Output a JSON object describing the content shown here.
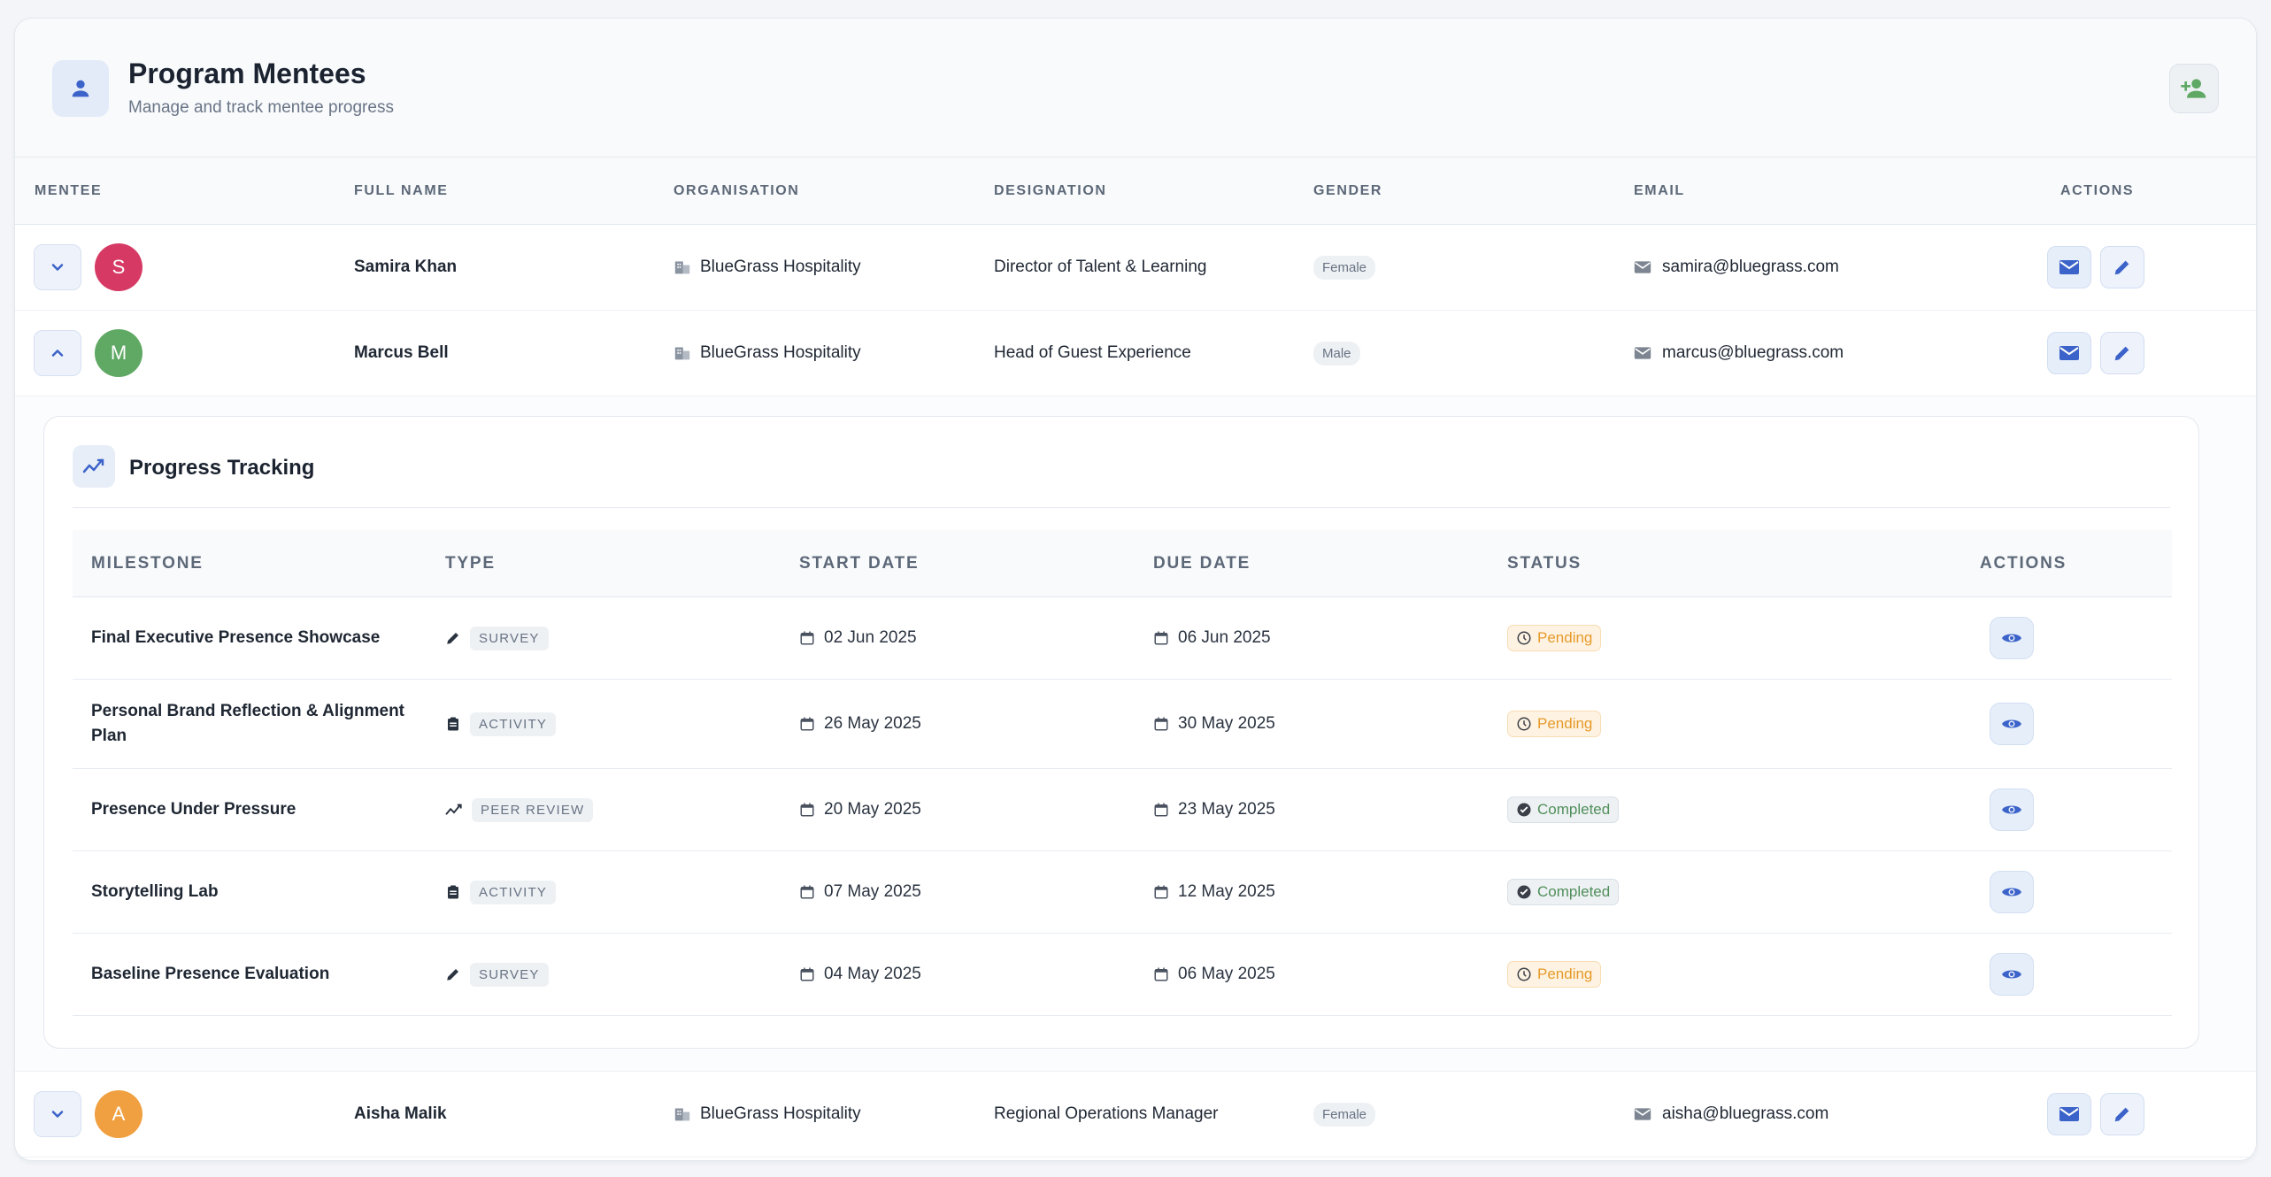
{
  "header": {
    "title": "Program Mentees",
    "subtitle": "Manage and track mentee progress",
    "icon": "person-icon",
    "add_icon": "person-add-icon"
  },
  "columns": {
    "mentee": "MENTEE",
    "full_name": "FULL NAME",
    "organisation": "ORGANISATION",
    "designation": "DESIGNATION",
    "gender": "GENDER",
    "email": "EMAIL",
    "actions": "ACTIONS"
  },
  "mentees": [
    {
      "initial": "S",
      "avatar_color": "#d63a64",
      "name": "Samira Khan",
      "organisation": "BlueGrass Hospitality",
      "designation": "Director of Talent & Learning",
      "gender": "Female",
      "email": "samira@bluegrass.com",
      "expanded": false
    },
    {
      "initial": "M",
      "avatar_color": "#5fa964",
      "name": "Marcus Bell",
      "organisation": "BlueGrass Hospitality",
      "designation": "Head of Guest Experience",
      "gender": "Male",
      "email": "marcus@bluegrass.com",
      "expanded": true
    },
    {
      "initial": "A",
      "avatar_color": "#f0a040",
      "name": "Aisha Malik",
      "organisation": "BlueGrass Hospitality",
      "designation": "Regional Operations Manager",
      "gender": "Female",
      "email": "aisha@bluegrass.com",
      "expanded": false
    }
  ],
  "progress": {
    "title": "Progress Tracking",
    "columns": {
      "milestone": "MILESTONE",
      "type": "TYPE",
      "start_date": "START DATE",
      "due_date": "DUE DATE",
      "status": "STATUS",
      "actions": "ACTIONS"
    },
    "milestones": [
      {
        "name": "Final Executive Presence Showcase",
        "type": "SURVEY",
        "type_icon": "pencil-icon",
        "start": "02 Jun 2025",
        "due": "06 Jun 2025",
        "status": "Pending"
      },
      {
        "name": "Personal Brand Reflection & Alignment Plan",
        "type": "ACTIVITY",
        "type_icon": "clipboard-icon",
        "start": "26 May 2025",
        "due": "30 May 2025",
        "status": "Pending"
      },
      {
        "name": "Presence Under Pressure",
        "type": "PEER REVIEW",
        "type_icon": "trending-icon",
        "start": "20 May 2025",
        "due": "23 May 2025",
        "status": "Completed"
      },
      {
        "name": "Storytelling Lab",
        "type": "ACTIVITY",
        "type_icon": "clipboard-icon",
        "start": "07 May 2025",
        "due": "12 May 2025",
        "status": "Completed"
      },
      {
        "name": "Baseline Presence Evaluation",
        "type": "SURVEY",
        "type_icon": "pencil-icon",
        "start": "04 May 2025",
        "due": "06 May 2025",
        "status": "Pending"
      }
    ]
  },
  "colors": {
    "accent": "#3c63c9",
    "pending": "#e69a2a",
    "completed": "#4f8f5a",
    "add_icon": "#5fa964"
  }
}
